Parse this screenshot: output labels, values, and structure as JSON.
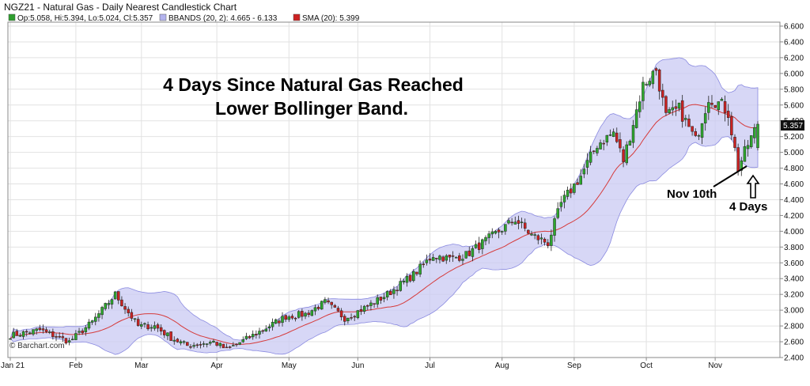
{
  "chart_data": {
    "type": "candlestick",
    "title": "NGZ21 - Natural Gas - Daily Nearest Candlestick Chart",
    "legend": [
      {
        "label": "Op:5.058, Hi:5.394, Lo:5.024, Cl:5.357",
        "color": "#2e9e2e"
      },
      {
        "label": "BBANDS (20, 2): 4.665 - 6.133",
        "color": "#b3b3ee"
      },
      {
        "label": "SMA (20): 5.399",
        "color": "#cc2222"
      }
    ],
    "legend_placement": "top-left",
    "watermark": "© Barchart.com",
    "last_price_label": "5.357",
    "last_price": 5.357,
    "y_ticks": [
      "2.400",
      "2.600",
      "2.800",
      "3.000",
      "3.200",
      "3.400",
      "3.600",
      "3.800",
      "4.000",
      "4.200",
      "4.400",
      "4.600",
      "4.800",
      "5.000",
      "5.200",
      "5.400",
      "5.600",
      "5.800",
      "6.000",
      "6.200",
      "6.400",
      "6.600"
    ],
    "ylim": [
      2.4,
      6.65
    ],
    "x_ticks": [
      "Jan 21",
      "Feb",
      "Mar",
      "Apr",
      "May",
      "Jun",
      "Jul",
      "Aug",
      "Sep",
      "Oct",
      "Nov"
    ],
    "grid": true,
    "annotations": {
      "headline_line1": "4 Days Since  Natural Gas Reached",
      "headline_line2": "Lower Bollinger Band.",
      "nov10": "Nov 10th",
      "four_days": "4 Days"
    },
    "close_anchors": [
      [
        "2021-01-04",
        2.68
      ],
      [
        "2021-01-15",
        2.75
      ],
      [
        "2021-01-28",
        2.6
      ],
      [
        "2021-02-08",
        2.85
      ],
      [
        "2021-02-17",
        3.2
      ],
      [
        "2021-02-26",
        2.8
      ],
      [
        "2021-03-05",
        2.8
      ],
      [
        "2021-03-12",
        2.65
      ],
      [
        "2021-03-19",
        2.55
      ],
      [
        "2021-03-31",
        2.6
      ],
      [
        "2021-04-06",
        2.5
      ],
      [
        "2021-04-16",
        2.68
      ],
      [
        "2021-04-30",
        2.92
      ],
      [
        "2021-05-10",
        2.95
      ],
      [
        "2021-05-18",
        3.1
      ],
      [
        "2021-05-26",
        2.9
      ],
      [
        "2021-06-04",
        3.05
      ],
      [
        "2021-06-14",
        3.2
      ],
      [
        "2021-06-24",
        3.45
      ],
      [
        "2021-07-02",
        3.7
      ],
      [
        "2021-07-09",
        3.65
      ],
      [
        "2021-07-16",
        3.7
      ],
      [
        "2021-07-23",
        3.85
      ],
      [
        "2021-07-30",
        4.0
      ],
      [
        "2021-08-06",
        4.15
      ],
      [
        "2021-08-13",
        3.95
      ],
      [
        "2021-08-20",
        3.85
      ],
      [
        "2021-08-26",
        4.35
      ],
      [
        "2021-09-03",
        4.7
      ],
      [
        "2021-09-10",
        5.1
      ],
      [
        "2021-09-17",
        5.25
      ],
      [
        "2021-09-22",
        4.9
      ],
      [
        "2021-09-30",
        5.85
      ],
      [
        "2021-10-06",
        6.05
      ],
      [
        "2021-10-11",
        5.45
      ],
      [
        "2021-10-15",
        5.55
      ],
      [
        "2021-10-22",
        5.15
      ],
      [
        "2021-10-28",
        5.7
      ],
      [
        "2021-11-03",
        5.6
      ],
      [
        "2021-11-05",
        5.5
      ],
      [
        "2021-11-10",
        4.8
      ],
      [
        "2021-11-15",
        5.1
      ],
      [
        "2021-11-18",
        5.357
      ]
    ]
  }
}
